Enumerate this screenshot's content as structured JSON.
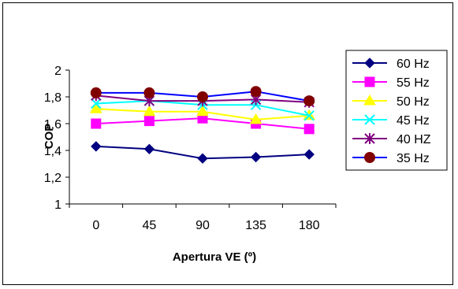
{
  "chart_data": {
    "type": "line",
    "title": "",
    "xlabel": "Apertura VE (º)",
    "ylabel": "COP",
    "categories": [
      "0",
      "45",
      "90",
      "135",
      "180"
    ],
    "ylim": [
      1,
      2
    ],
    "yticks": [
      "1",
      "1,2",
      "1,4",
      "1,6",
      "1,8",
      "2"
    ],
    "grid": false,
    "legend": "right",
    "series": [
      {
        "name": "60 Hz",
        "values": [
          1.43,
          1.41,
          1.34,
          1.35,
          1.37
        ],
        "color": "#000080",
        "marker": "diamond"
      },
      {
        "name": "55 Hz",
        "values": [
          1.6,
          1.62,
          1.64,
          1.6,
          1.56
        ],
        "color": "#FF00FF",
        "marker": "square"
      },
      {
        "name": "50 Hz",
        "values": [
          1.71,
          1.69,
          1.69,
          1.63,
          1.66
        ],
        "color": "#FFFF00",
        "marker": "triangle"
      },
      {
        "name": "45 Hz",
        "values": [
          1.75,
          1.77,
          1.74,
          1.74,
          1.66
        ],
        "color": "#00FFFF",
        "marker": "x"
      },
      {
        "name": "40 HZ",
        "values": [
          1.81,
          1.77,
          1.77,
          1.78,
          1.76
        ],
        "color": "#800080",
        "marker": "asterisk"
      },
      {
        "name": "35 Hz",
        "values": [
          1.83,
          1.83,
          1.8,
          1.84,
          1.77
        ],
        "color": "#0000FF",
        "marker": "circle",
        "marker_color": "#800000"
      }
    ]
  }
}
